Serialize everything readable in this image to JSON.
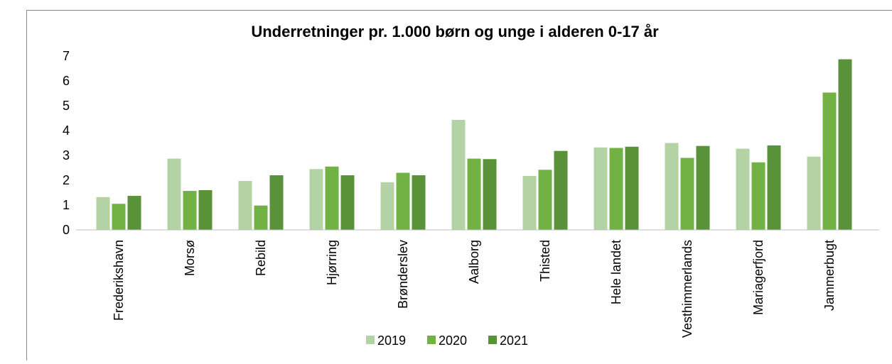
{
  "chart_data": {
    "type": "bar",
    "title": "Underretninger pr. 1.000 børn og unge i alderen 0-17 år",
    "categories": [
      "Frederikshavn",
      "Morsø",
      "Rebild",
      "Hjørring",
      "Brønderslev",
      "Aalborg",
      "Thisted",
      "Hele landet",
      "Vesthimmerlands",
      "Mariagerfjord",
      "Jammerbugt"
    ],
    "series": [
      {
        "name": "2019",
        "color": "#b3d3a4",
        "values": [
          1.32,
          2.87,
          1.97,
          2.45,
          1.92,
          4.43,
          2.17,
          3.32,
          3.5,
          3.27,
          2.95
        ]
      },
      {
        "name": "2020",
        "color": "#72b244",
        "values": [
          1.05,
          1.57,
          0.98,
          2.55,
          2.3,
          2.87,
          2.42,
          3.3,
          2.9,
          2.72,
          5.53
        ]
      },
      {
        "name": "2021",
        "color": "#5a923a",
        "values": [
          1.37,
          1.6,
          2.2,
          2.2,
          2.2,
          2.85,
          3.18,
          3.35,
          3.38,
          3.4,
          6.87
        ]
      }
    ],
    "ylim": [
      0,
      7
    ],
    "yticks": [
      0,
      1,
      2,
      3,
      4,
      5,
      6,
      7
    ],
    "grid": false,
    "legend": "bottom"
  }
}
